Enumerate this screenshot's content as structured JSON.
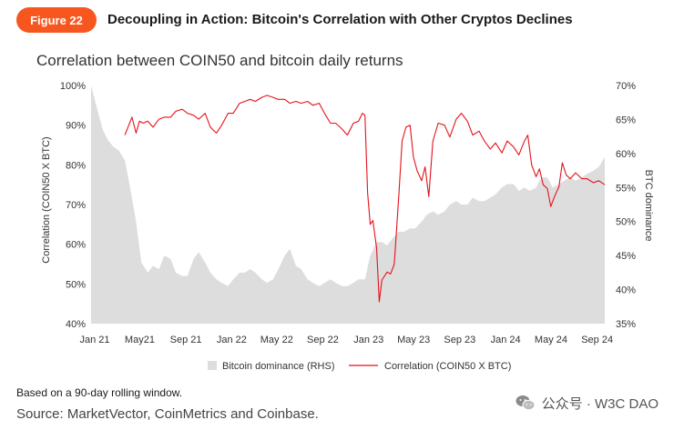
{
  "header": {
    "badge": "Figure 22",
    "title": "Decoupling in Action: Bitcoin's Correlation with Other Cryptos Declines"
  },
  "colors": {
    "accent": "#f7561e",
    "correlation": "#e3131b",
    "dominance": "#dddddd"
  },
  "footer": {
    "note": "Based on a 90-day rolling window.",
    "source": "Source: MarketVector, CoinMetrics and Coinbase.",
    "watermark": "公众号 · W3C DAO",
    "watermark_icon": "wechat-icon"
  },
  "chart_data": {
    "type": "line",
    "title": "Correlation between COIN50 and bitcoin daily returns",
    "ylabel": "Correlation (COIN50 X BTC)",
    "y2label": "BTC dominance",
    "ylim": [
      40,
      100
    ],
    "y2lim": [
      35,
      70
    ],
    "yticks": [
      "100%",
      "90%",
      "80%",
      "70%",
      "60%",
      "50%",
      "40%"
    ],
    "y2ticks": [
      "70%",
      "65%",
      "60%",
      "55%",
      "50%",
      "45%",
      "40%",
      "35%"
    ],
    "xticks": [
      "Jan 21",
      "May21",
      "Sep 21",
      "Jan 22",
      "May 22",
      "Sep 22",
      "Jan 23",
      "May 23",
      "Sep 23",
      "Jan 24",
      "May 24",
      "Sep 24"
    ],
    "grid": false,
    "legend": "bottom",
    "series": [
      {
        "name": "Bitcoin dominance (RHS)",
        "type": "area",
        "axis": "right",
        "x": [
          "2021-01-01",
          "2021-01-15",
          "2021-02-01",
          "2021-02-15",
          "2021-03-01",
          "2021-03-15",
          "2021-04-01",
          "2021-04-15",
          "2021-05-01",
          "2021-05-15",
          "2021-06-01",
          "2021-06-15",
          "2021-07-01",
          "2021-07-15",
          "2021-08-01",
          "2021-08-15",
          "2021-09-01",
          "2021-09-15",
          "2021-10-01",
          "2021-10-15",
          "2021-11-01",
          "2021-11-15",
          "2021-12-01",
          "2021-12-15",
          "2022-01-01",
          "2022-01-15",
          "2022-02-01",
          "2022-02-15",
          "2022-03-01",
          "2022-03-15",
          "2022-04-01",
          "2022-04-15",
          "2022-05-01",
          "2022-05-15",
          "2022-06-01",
          "2022-06-15",
          "2022-07-01",
          "2022-07-15",
          "2022-08-01",
          "2022-08-15",
          "2022-09-01",
          "2022-09-15",
          "2022-10-01",
          "2022-10-15",
          "2022-11-01",
          "2022-11-15",
          "2022-12-01",
          "2022-12-15",
          "2023-01-01",
          "2023-01-15",
          "2023-02-01",
          "2023-02-15",
          "2023-03-01",
          "2023-03-15",
          "2023-04-01",
          "2023-04-15",
          "2023-05-01",
          "2023-05-15",
          "2023-06-01",
          "2023-06-15",
          "2023-07-01",
          "2023-07-15",
          "2023-08-01",
          "2023-08-15",
          "2023-09-01",
          "2023-09-15",
          "2023-10-01",
          "2023-10-15",
          "2023-11-01",
          "2023-11-15",
          "2023-12-01",
          "2023-12-15",
          "2024-01-01",
          "2024-01-15",
          "2024-02-01",
          "2024-02-15",
          "2024-03-01",
          "2024-03-15",
          "2024-04-01",
          "2024-04-15",
          "2024-05-01",
          "2024-05-15",
          "2024-06-01",
          "2024-06-15",
          "2024-07-01",
          "2024-07-15",
          "2024-08-01",
          "2024-08-15",
          "2024-09-01",
          "2024-09-15",
          "2024-10-01"
        ],
        "values": [
          70.0,
          67.0,
          63.5,
          62.0,
          61.0,
          60.5,
          59.0,
          55.0,
          50.0,
          44.0,
          42.5,
          43.5,
          43.0,
          45.0,
          44.5,
          42.5,
          42.0,
          42.0,
          44.5,
          45.5,
          44.0,
          42.5,
          41.5,
          41.0,
          40.5,
          41.5,
          42.5,
          42.5,
          43.0,
          42.5,
          41.5,
          41.0,
          41.5,
          43.0,
          45.0,
          46.0,
          43.5,
          43.0,
          41.5,
          41.0,
          40.5,
          41.0,
          41.5,
          41.0,
          40.5,
          40.5,
          41.0,
          41.5,
          41.5,
          45.0,
          47.0,
          47.0,
          46.5,
          47.5,
          48.5,
          48.5,
          49.0,
          49.0,
          50.0,
          51.0,
          51.5,
          51.0,
          51.5,
          52.5,
          53.0,
          52.5,
          52.5,
          53.5,
          53.0,
          53.0,
          53.5,
          54.0,
          55.0,
          55.5,
          55.5,
          54.5,
          55.0,
          54.5,
          55.0,
          56.5,
          56.5,
          55.0,
          55.5,
          56.0,
          56.5,
          56.0,
          56.5,
          57.0,
          57.5,
          58.0,
          59.5
        ]
      },
      {
        "name": "Correlation (COIN50 X BTC)",
        "type": "line",
        "axis": "left",
        "x": [
          "2021-04-01",
          "2021-04-20",
          "2021-05-01",
          "2021-05-10",
          "2021-05-20",
          "2021-06-01",
          "2021-06-15",
          "2021-07-01",
          "2021-07-15",
          "2021-08-01",
          "2021-08-15",
          "2021-09-01",
          "2021-09-15",
          "2021-10-01",
          "2021-10-15",
          "2021-11-01",
          "2021-11-15",
          "2021-12-01",
          "2021-12-15",
          "2022-01-01",
          "2022-01-15",
          "2022-02-01",
          "2022-02-15",
          "2022-03-01",
          "2022-03-15",
          "2022-04-01",
          "2022-04-15",
          "2022-05-01",
          "2022-05-15",
          "2022-06-01",
          "2022-06-15",
          "2022-07-01",
          "2022-07-15",
          "2022-08-01",
          "2022-08-15",
          "2022-09-01",
          "2022-09-15",
          "2022-10-01",
          "2022-10-15",
          "2022-11-01",
          "2022-11-15",
          "2022-12-01",
          "2022-12-15",
          "2022-12-25",
          "2023-01-01",
          "2023-01-08",
          "2023-01-15",
          "2023-01-22",
          "2023-02-01",
          "2023-02-08",
          "2023-02-15",
          "2023-03-01",
          "2023-03-10",
          "2023-03-20",
          "2023-04-01",
          "2023-04-10",
          "2023-04-20",
          "2023-05-01",
          "2023-05-10",
          "2023-05-20",
          "2023-06-01",
          "2023-06-10",
          "2023-06-20",
          "2023-07-01",
          "2023-07-15",
          "2023-08-01",
          "2023-08-15",
          "2023-09-01",
          "2023-09-15",
          "2023-10-01",
          "2023-10-15",
          "2023-11-01",
          "2023-11-15",
          "2023-12-01",
          "2023-12-15",
          "2024-01-01",
          "2024-01-15",
          "2024-02-01",
          "2024-02-15",
          "2024-03-01",
          "2024-03-10",
          "2024-03-20",
          "2024-04-01",
          "2024-04-10",
          "2024-04-20",
          "2024-05-01",
          "2024-05-10",
          "2024-05-20",
          "2024-06-01",
          "2024-06-10",
          "2024-06-20",
          "2024-07-01",
          "2024-07-15",
          "2024-08-01",
          "2024-08-15",
          "2024-09-01",
          "2024-09-15",
          "2024-10-01"
        ],
        "values": [
          87.5,
          92.0,
          88.0,
          91.0,
          90.5,
          91.0,
          89.5,
          91.5,
          92.0,
          92.0,
          93.5,
          94.0,
          93.0,
          92.5,
          91.5,
          93.0,
          89.5,
          88.0,
          90.0,
          93.0,
          93.0,
          95.5,
          96.0,
          96.5,
          96.0,
          97.0,
          97.5,
          97.0,
          96.5,
          96.5,
          95.5,
          96.0,
          95.5,
          96.0,
          95.0,
          95.5,
          93.0,
          90.5,
          90.5,
          89.0,
          87.5,
          90.5,
          91.0,
          93.0,
          92.5,
          73.0,
          65.0,
          66.0,
          59.0,
          45.5,
          51.0,
          53.0,
          52.5,
          55.0,
          72.0,
          86.0,
          89.5,
          90.0,
          82.0,
          78.5,
          76.0,
          79.5,
          72.0,
          86.0,
          90.5,
          90.0,
          87.0,
          91.5,
          93.0,
          91.0,
          87.5,
          88.5,
          86.0,
          84.0,
          85.5,
          83.0,
          86.0,
          84.5,
          82.5,
          86.0,
          87.5,
          80.0,
          77.0,
          79.0,
          75.0,
          74.0,
          69.5,
          72.0,
          74.5,
          80.5,
          77.5,
          76.5,
          78.0,
          76.5,
          76.5,
          75.5,
          76.0,
          75.0
        ]
      }
    ]
  }
}
